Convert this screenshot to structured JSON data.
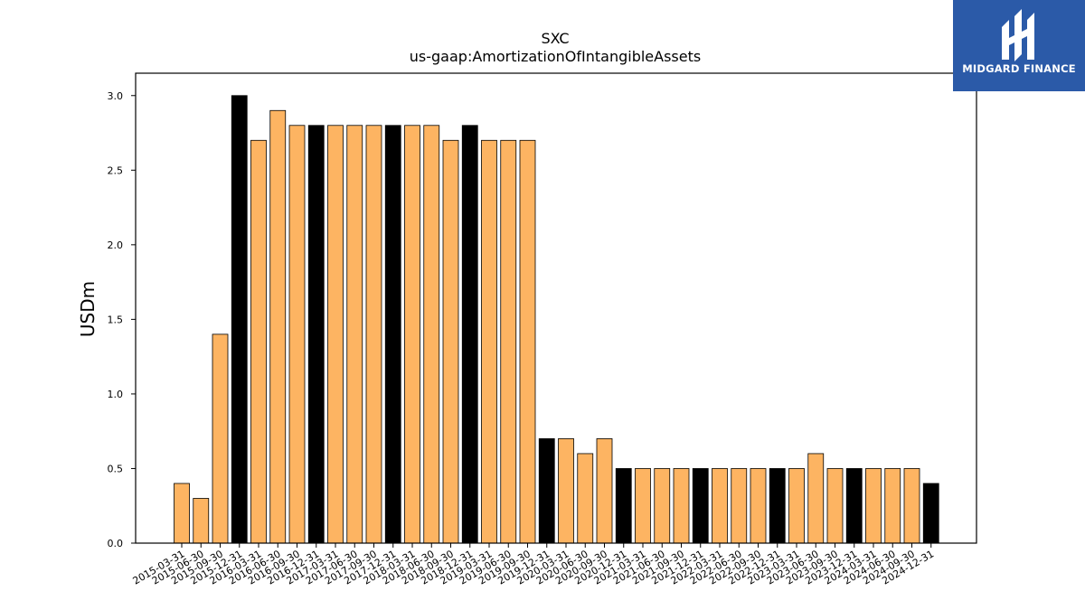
{
  "logo": {
    "text": "MIDGARD FINANCE"
  },
  "colors": {
    "quarter_bar": "#fdb462",
    "annual_bar": "#000000",
    "logo_bg": "#2b5aa8"
  },
  "chart_data": {
    "type": "bar",
    "title": "SXC",
    "subtitle": "us-gaap:AmortizationOfIntangibleAssets",
    "ylabel": "USDm",
    "xlabel": "",
    "ylim": [
      0,
      3.15
    ],
    "yticks": [
      "0.0",
      "0.5",
      "1.0",
      "1.5",
      "2.0",
      "2.5",
      "3.0"
    ],
    "grid": false,
    "categories": [
      "2015-03-31",
      "2015-06-30",
      "2015-09-30",
      "2015-12-31",
      "2016-03-31",
      "2016-06-30",
      "2016-09-30",
      "2016-12-31",
      "2017-03-31",
      "2017-06-30",
      "2017-09-30",
      "2017-12-31",
      "2018-03-31",
      "2018-06-30",
      "2018-09-30",
      "2018-12-31",
      "2019-03-31",
      "2019-06-30",
      "2019-09-30",
      "2019-12-31",
      "2020-03-31",
      "2020-06-30",
      "2020-09-30",
      "2020-12-31",
      "2021-03-31",
      "2021-06-30",
      "2021-09-30",
      "2021-12-31",
      "2022-03-31",
      "2022-06-30",
      "2022-09-30",
      "2022-12-31",
      "2023-03-31",
      "2023-06-30",
      "2023-09-30",
      "2023-12-31",
      "2024-03-31",
      "2024-06-30",
      "2024-09-30",
      "2024-12-31"
    ],
    "values": [
      0.4,
      0.3,
      1.4,
      3.0,
      2.7,
      2.9,
      2.8,
      2.8,
      2.8,
      2.8,
      2.8,
      2.8,
      2.8,
      2.8,
      2.7,
      2.8,
      2.7,
      2.7,
      2.7,
      0.7,
      0.7,
      0.6,
      0.7,
      0.5,
      0.5,
      0.5,
      0.5,
      0.5,
      0.5,
      0.5,
      0.5,
      0.5,
      0.5,
      0.6,
      0.5,
      0.5,
      0.5,
      0.5,
      0.5,
      0.4
    ],
    "annual": [
      false,
      false,
      false,
      true,
      false,
      false,
      false,
      true,
      false,
      false,
      false,
      true,
      false,
      false,
      false,
      true,
      false,
      false,
      false,
      true,
      false,
      false,
      false,
      true,
      false,
      false,
      false,
      true,
      false,
      false,
      false,
      true,
      false,
      false,
      false,
      true,
      false,
      false,
      false,
      true
    ]
  }
}
